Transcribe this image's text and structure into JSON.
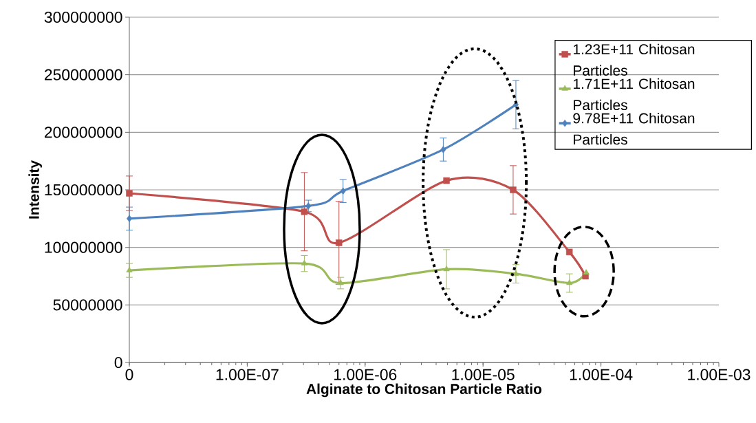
{
  "chart_data": {
    "type": "line",
    "xlabel": "Alginate to Chitosan Particle Ratio",
    "ylabel": "Intensity",
    "log": "x",
    "grid": "y",
    "legend": "top right",
    "line_style": "solid",
    "xlim": [
      1e-08,
      0.001
    ],
    "xticks": [
      {
        "value": 1e-08,
        "label": "0"
      },
      {
        "value": 1e-07,
        "label": "1.00E-07"
      },
      {
        "value": 1e-06,
        "label": "1.00E-06"
      },
      {
        "value": 1e-05,
        "label": "1.00E-05"
      },
      {
        "value": 0.0001,
        "label": "1.00E-04"
      },
      {
        "value": 0.001,
        "label": "1.00E-03"
      }
    ],
    "ylim": [
      0,
      300000000
    ],
    "yticks": [
      0,
      50000000,
      100000000,
      150000000,
      200000000,
      250000000,
      300000000
    ],
    "series": [
      {
        "name": "1.23E+11 Chitosan Particles",
        "color": "#c0504d",
        "marker": "square",
        "x": [
          1e-08,
          3.05e-07,
          6e-07,
          4.9e-06,
          1.8e-05,
          5.4e-05,
          7.4e-05
        ],
        "values": [
          147000000,
          131000000,
          104000000,
          158000000,
          150000000,
          96000000,
          75000000
        ],
        "errors": [
          15000000,
          34000000,
          36000000,
          null,
          21000000,
          null,
          null
        ]
      },
      {
        "name": "1.71E+11 Chitosan Particles",
        "color": "#9bbb59",
        "marker": "triangle",
        "x": [
          1e-08,
          3.05e-07,
          6.2e-07,
          4.9e-06,
          1.9e-05,
          5.4e-05,
          7.5e-05
        ],
        "values": [
          80000000,
          86000000,
          69000000,
          81000000,
          77000000,
          69000000,
          78000000
        ],
        "errors": [
          6000000,
          7000000,
          5000000,
          17000000,
          8000000,
          8000000,
          null
        ]
      },
      {
        "name": "9.78E+11 Chitosan Particles",
        "color": "#4f81bd",
        "marker": "diamond",
        "x": [
          1e-08,
          3.3e-07,
          6.5e-07,
          4.6e-06,
          1.9e-05
        ],
        "values": [
          125000000,
          136000000,
          149000000,
          185000000,
          224000000
        ],
        "errors": [
          10000000,
          5000000,
          10000000,
          10000000,
          21000000
        ]
      }
    ]
  }
}
